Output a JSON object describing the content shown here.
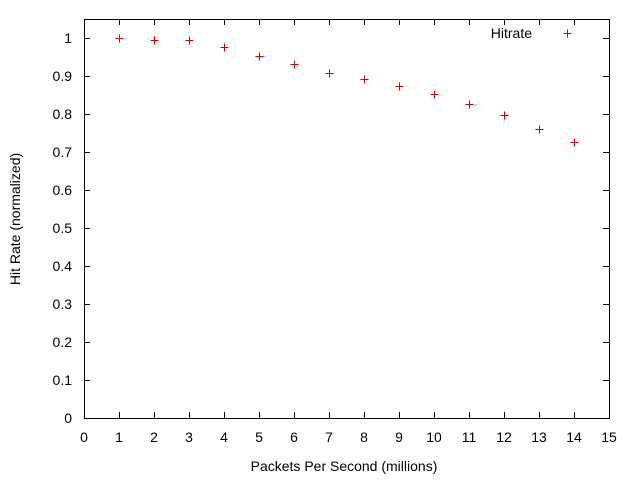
{
  "chart_data": {
    "type": "scatter",
    "title": "",
    "xlabel": "Packets Per Second (millions)",
    "ylabel": "Hit Rate (normalized)",
    "xlim": [
      0,
      15
    ],
    "ylim": [
      0,
      1.05
    ],
    "xticks": [
      0,
      1,
      2,
      3,
      4,
      5,
      6,
      7,
      8,
      9,
      10,
      11,
      12,
      13,
      14,
      15
    ],
    "xtick_labels": [
      "0",
      "1",
      "2",
      "3",
      "4",
      "5",
      "6",
      "7",
      "8",
      "9",
      "10",
      "11",
      "12",
      "13",
      "14",
      "15"
    ],
    "yticks": [
      0,
      0.1,
      0.2,
      0.3,
      0.4,
      0.5,
      0.6,
      0.7,
      0.8,
      0.9,
      1
    ],
    "ytick_labels": [
      "0",
      "0.1",
      "0.2",
      "0.3",
      "0.4",
      "0.5",
      "0.6",
      "0.7",
      "0.8",
      "0.9",
      "1"
    ],
    "grid": false,
    "legend_position": "top-right",
    "series": [
      {
        "name": "Hitrate",
        "marker": "plus",
        "color": "#cc0000",
        "x": [
          1,
          2,
          3,
          4,
          5,
          6,
          7,
          8,
          9,
          10,
          11,
          12,
          13,
          14
        ],
        "y": [
          1.0,
          0.995,
          0.995,
          0.977,
          0.953,
          0.932,
          0.908,
          0.892,
          0.873,
          0.853,
          0.826,
          0.798,
          0.76,
          0.726
        ]
      }
    ]
  }
}
